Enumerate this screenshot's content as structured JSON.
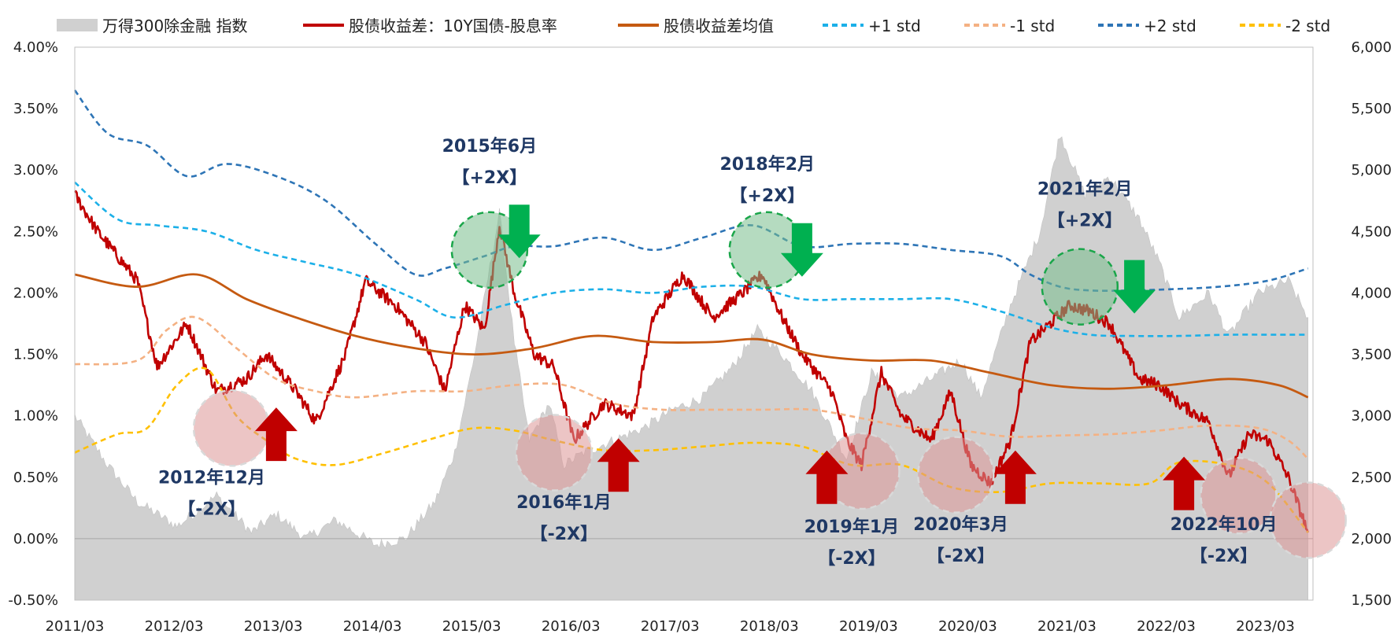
{
  "chart_data": {
    "type": "line",
    "legend_position": "top",
    "grid": false,
    "x_axis": {
      "tick_labels": [
        "2011/03",
        "2012/03",
        "2013/03",
        "2014/03",
        "2015/03",
        "2016/03",
        "2017/03",
        "2018/03",
        "2019/03",
        "2020/03",
        "2021/03",
        "2022/03",
        "2023/03"
      ],
      "range": [
        "2011/03",
        "2023/08"
      ]
    },
    "y_left": {
      "range": [
        -0.5,
        4.0
      ],
      "tick_labels": [
        "4.00%",
        "3.50%",
        "3.00%",
        "2.50%",
        "2.00%",
        "1.50%",
        "1.00%",
        "0.50%",
        "0.00%",
        "-0.50%"
      ]
    },
    "y_right": {
      "range": [
        1500,
        6000
      ],
      "tick_labels": [
        "6,000",
        "5,500",
        "5,000",
        "4,500",
        "4,000",
        "3,500",
        "3,000",
        "2,500",
        "2,000",
        "1,500"
      ]
    },
    "series": [
      {
        "name": "万得300除金融 指数",
        "kind": "area",
        "axis": "right",
        "color": "#d0d0d0",
        "x": [
          2011.17,
          2011.5,
          2011.8,
          2012.2,
          2012.6,
          2012.95,
          2013.2,
          2013.5,
          2013.8,
          2014.2,
          2014.5,
          2014.8,
          2015.0,
          2015.2,
          2015.45,
          2015.6,
          2015.75,
          2015.95,
          2016.1,
          2016.3,
          2016.6,
          2016.9,
          2017.2,
          2017.5,
          2017.8,
          2018.05,
          2018.3,
          2018.6,
          2018.95,
          2019.2,
          2019.5,
          2019.8,
          2020.1,
          2020.3,
          2020.6,
          2020.9,
          2021.1,
          2021.35,
          2021.6,
          2021.9,
          2022.1,
          2022.3,
          2022.6,
          2022.8,
          2023.1,
          2023.4,
          2023.6
        ],
        "values": [
          3000,
          2600,
          2300,
          2100,
          2350,
          2050,
          2200,
          2000,
          2150,
          1950,
          2000,
          2300,
          2700,
          3500,
          4650,
          3600,
          2800,
          3100,
          2600,
          2700,
          2800,
          2900,
          3050,
          3150,
          3400,
          3700,
          3500,
          3200,
          2650,
          3350,
          3150,
          3300,
          3450,
          3150,
          3900,
          4500,
          5300,
          4800,
          4950,
          4600,
          4250,
          3800,
          4000,
          3650,
          4000,
          4100,
          3800
        ]
      },
      {
        "name": "股债收益差：10Y国债-股息率",
        "kind": "line",
        "axis": "left",
        "color": "#c00000",
        "x": [
          2011.17,
          2011.4,
          2011.6,
          2011.8,
          2012.0,
          2012.3,
          2012.6,
          2012.9,
          2013.1,
          2013.4,
          2013.6,
          2013.9,
          2014.1,
          2014.4,
          2014.7,
          2014.9,
          2015.1,
          2015.3,
          2015.45,
          2015.6,
          2015.8,
          2016.0,
          2016.2,
          2016.5,
          2016.8,
          2017.0,
          2017.3,
          2017.6,
          2017.9,
          2018.1,
          2018.3,
          2018.5,
          2018.8,
          2018.95,
          2019.1,
          2019.3,
          2019.5,
          2019.8,
          2020.0,
          2020.2,
          2020.4,
          2020.6,
          2020.8,
          2021.0,
          2021.2,
          2021.4,
          2021.6,
          2021.9,
          2022.1,
          2022.3,
          2022.6,
          2022.8,
          2023.0,
          2023.2,
          2023.4,
          2023.6
        ],
        "values": [
          2.8,
          2.5,
          2.3,
          2.1,
          1.4,
          1.75,
          1.2,
          1.3,
          1.5,
          1.2,
          0.95,
          1.5,
          2.1,
          1.9,
          1.6,
          1.2,
          1.9,
          1.7,
          2.55,
          2.0,
          1.5,
          1.4,
          0.8,
          1.1,
          1.0,
          1.8,
          2.15,
          1.8,
          2.0,
          2.15,
          1.8,
          1.5,
          1.2,
          0.8,
          0.6,
          1.35,
          1.0,
          0.8,
          1.2,
          0.6,
          0.45,
          0.8,
          1.6,
          1.75,
          1.9,
          1.85,
          1.75,
          1.3,
          1.25,
          1.1,
          0.95,
          0.5,
          0.85,
          0.8,
          0.5,
          0.05
        ]
      },
      {
        "name": "股债收益差均值",
        "kind": "line",
        "axis": "left",
        "color": "#c55a11",
        "x": [
          2011.17,
          2011.8,
          2012.4,
          2012.9,
          2013.4,
          2014.0,
          2014.6,
          2015.2,
          2015.8,
          2016.4,
          2017.0,
          2017.6,
          2018.1,
          2018.6,
          2019.2,
          2019.8,
          2020.4,
          2021.0,
          2021.6,
          2022.2,
          2022.8,
          2023.3,
          2023.6
        ],
        "values": [
          2.15,
          2.05,
          2.15,
          1.95,
          1.8,
          1.65,
          1.55,
          1.5,
          1.55,
          1.65,
          1.6,
          1.6,
          1.62,
          1.5,
          1.45,
          1.45,
          1.35,
          1.25,
          1.22,
          1.25,
          1.3,
          1.25,
          1.15
        ]
      },
      {
        "name": "+1 std",
        "kind": "dash",
        "axis": "left",
        "color": "#1cb0e8",
        "x": [
          2011.17,
          2011.6,
          2012.0,
          2012.5,
          2013.0,
          2013.5,
          2014.0,
          2014.6,
          2015.0,
          2015.5,
          2016.0,
          2016.5,
          2017.0,
          2017.5,
          2018.0,
          2018.5,
          2019.0,
          2019.5,
          2020.0,
          2020.5,
          2021.0,
          2021.4,
          2021.8,
          2022.3,
          2022.8,
          2023.3,
          2023.6
        ],
        "values": [
          2.9,
          2.6,
          2.55,
          2.5,
          2.35,
          2.25,
          2.15,
          1.95,
          1.8,
          1.9,
          2.0,
          2.03,
          2.0,
          2.05,
          2.05,
          1.95,
          1.95,
          1.95,
          1.95,
          1.85,
          1.72,
          1.66,
          1.65,
          1.65,
          1.66,
          1.66,
          1.66
        ]
      },
      {
        "name": "-1 std",
        "kind": "dash",
        "axis": "left",
        "color": "#f4b183",
        "x": [
          2011.17,
          2011.8,
          2012.1,
          2012.4,
          2012.8,
          2013.2,
          2013.6,
          2014.0,
          2014.6,
          2015.1,
          2015.6,
          2016.1,
          2016.6,
          2017.1,
          2017.6,
          2018.1,
          2018.6,
          2019.1,
          2019.6,
          2020.1,
          2020.6,
          2021.1,
          2021.6,
          2022.1,
          2022.6,
          2023.1,
          2023.4,
          2023.6
        ],
        "values": [
          1.42,
          1.45,
          1.7,
          1.8,
          1.55,
          1.3,
          1.2,
          1.15,
          1.2,
          1.2,
          1.25,
          1.25,
          1.1,
          1.05,
          1.05,
          1.05,
          1.05,
          0.98,
          0.9,
          0.88,
          0.83,
          0.84,
          0.85,
          0.88,
          0.92,
          0.9,
          0.8,
          0.65
        ]
      },
      {
        "name": "+2 std",
        "kind": "dash",
        "axis": "left",
        "color": "#2e75b6",
        "x": [
          2011.17,
          2011.5,
          2011.9,
          2012.3,
          2012.7,
          2013.2,
          2013.7,
          2014.2,
          2014.6,
          2014.9,
          2015.3,
          2015.6,
          2016.0,
          2016.5,
          2017.0,
          2017.5,
          2018.0,
          2018.5,
          2019.0,
          2019.5,
          2020.0,
          2020.5,
          2020.8,
          2021.1,
          2021.4,
          2021.8,
          2022.2,
          2022.7,
          2023.2,
          2023.6
        ],
        "values": [
          3.65,
          3.3,
          3.2,
          2.95,
          3.05,
          2.95,
          2.75,
          2.4,
          2.15,
          2.2,
          2.3,
          2.38,
          2.38,
          2.45,
          2.35,
          2.45,
          2.55,
          2.38,
          2.4,
          2.4,
          2.35,
          2.3,
          2.15,
          2.05,
          2.02,
          2.02,
          2.03,
          2.05,
          2.1,
          2.2
        ]
      },
      {
        "name": "-2 std",
        "kind": "dash",
        "axis": "left",
        "color": "#ffc000",
        "x": [
          2011.17,
          2011.6,
          2011.9,
          2012.2,
          2012.5,
          2012.8,
          2013.1,
          2013.4,
          2013.8,
          2014.3,
          2014.8,
          2015.2,
          2015.6,
          2016.0,
          2016.5,
          2017.0,
          2017.5,
          2018.0,
          2018.5,
          2019.0,
          2019.5,
          2020.0,
          2020.5,
          2021.0,
          2021.5,
          2022.0,
          2022.3,
          2022.8,
          2023.2,
          2023.6
        ],
        "values": [
          0.7,
          0.85,
          0.9,
          1.25,
          1.38,
          1.0,
          0.8,
          0.65,
          0.6,
          0.7,
          0.82,
          0.9,
          0.88,
          0.8,
          0.72,
          0.72,
          0.75,
          0.78,
          0.75,
          0.6,
          0.6,
          0.42,
          0.38,
          0.45,
          0.45,
          0.45,
          0.62,
          0.6,
          0.45,
          0.05
        ]
      }
    ],
    "highlights": [
      {
        "center": [
          2012.75,
          0.9
        ],
        "color": "red"
      },
      {
        "center": [
          2015.35,
          2.35
        ],
        "color": "green"
      },
      {
        "center": [
          2016.0,
          0.7
        ],
        "color": "red"
      },
      {
        "center": [
          2018.15,
          2.35
        ],
        "color": "green"
      },
      {
        "center": [
          2019.1,
          0.55
        ],
        "color": "red"
      },
      {
        "center": [
          2020.05,
          0.52
        ],
        "color": "red"
      },
      {
        "center": [
          2021.3,
          2.05
        ],
        "color": "green"
      },
      {
        "center": [
          2022.9,
          0.35
        ],
        "color": "red"
      },
      {
        "center": [
          2023.6,
          0.15
        ],
        "color": "red"
      }
    ],
    "arrows": [
      {
        "x": 2013.2,
        "y": 0.85,
        "dir": "up",
        "color": "#c00000"
      },
      {
        "x": 2015.65,
        "y": 2.5,
        "dir": "down",
        "color": "#00b050"
      },
      {
        "x": 2016.65,
        "y": 0.6,
        "dir": "up",
        "color": "#c00000"
      },
      {
        "x": 2018.5,
        "y": 2.35,
        "dir": "down",
        "color": "#00b050"
      },
      {
        "x": 2018.75,
        "y": 0.5,
        "dir": "up",
        "color": "#c00000"
      },
      {
        "x": 2020.65,
        "y": 0.5,
        "dir": "up",
        "color": "#c00000"
      },
      {
        "x": 2021.85,
        "y": 2.05,
        "dir": "down",
        "color": "#00b050"
      },
      {
        "x": 2022.35,
        "y": 0.45,
        "dir": "up",
        "color": "#c00000"
      }
    ],
    "annotations": [
      {
        "x": 2012.55,
        "y": 0.45,
        "lines": [
          "2012年12月",
          "【-2X】"
        ]
      },
      {
        "x": 2015.35,
        "y": 3.15,
        "lines": [
          "2015年6月",
          "【+2X】"
        ]
      },
      {
        "x": 2016.1,
        "y": 0.25,
        "lines": [
          "2016年1月",
          "【-2X】"
        ]
      },
      {
        "x": 2018.15,
        "y": 3.0,
        "lines": [
          "2018年2月",
          "【+2X】"
        ]
      },
      {
        "x": 2019.0,
        "y": 0.05,
        "lines": [
          "2019年1月",
          "【-2X】"
        ]
      },
      {
        "x": 2020.1,
        "y": 0.07,
        "lines": [
          "2020年3月",
          "【-2X】"
        ]
      },
      {
        "x": 2021.35,
        "y": 2.8,
        "lines": [
          "2021年2月",
          "【+2X】"
        ]
      },
      {
        "x": 2022.75,
        "y": 0.07,
        "lines": [
          "2022年10月",
          "【-2X】"
        ]
      }
    ]
  }
}
